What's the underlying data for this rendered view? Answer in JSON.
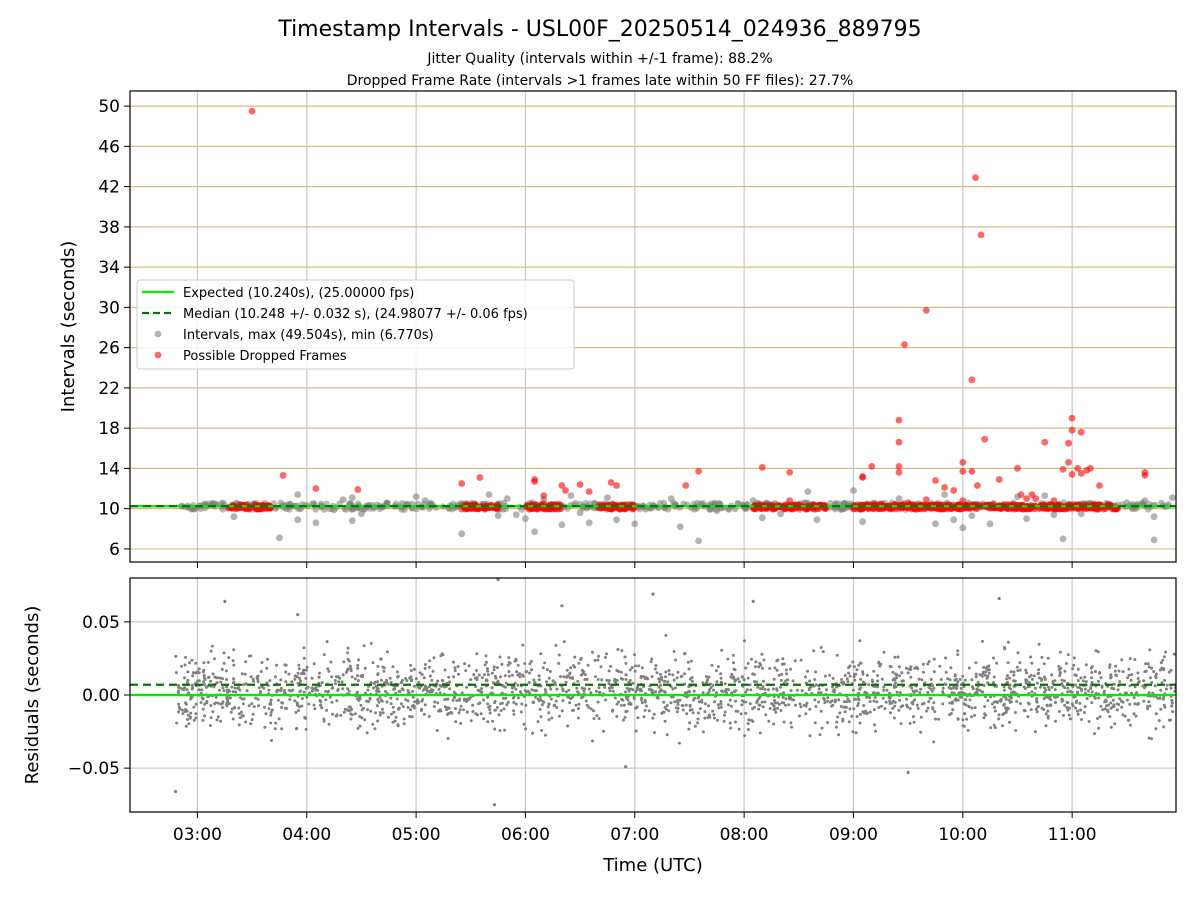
{
  "chart_data": [
    {
      "type": "scatter",
      "title": "Timestamp Intervals - USL00F_20250514_024936_889795",
      "subtitle_lines": [
        "Jitter Quality (intervals within +/-1 frame): 88.2%",
        "Dropped Frame Rate (intervals >1 frames late within 50 FF files): 27.7%"
      ],
      "xlabel": "",
      "ylabel": "Intervals (seconds)",
      "xlim": [
        "02:23",
        "11:57"
      ],
      "ylim": [
        4.7,
        51.5
      ],
      "yticks": [
        6,
        10,
        14,
        18,
        22,
        26,
        30,
        34,
        38,
        42,
        46,
        50
      ],
      "grid": "horizontal lines at every y tick, vertical lines at every hour",
      "legend": "center-left",
      "legend_labels": {
        "expected": "Expected (10.240s), (25.00000 fps)",
        "median": "Median (10.248 +/- 0.032 s), (24.98077 +/- 0.06 fps)",
        "intervals": "Intervals, max (49.504s), min (6.770s)",
        "dropped": "Possible Dropped Frames"
      },
      "expected_value": 10.24,
      "median_value": 10.248,
      "series": [
        {
          "name": "Intervals, max (49.504s), min (6.770s)",
          "color": "#808080",
          "dense_band": {
            "x_start": "02:50",
            "x_end": "11:55",
            "y_min": 9.9,
            "y_max": 10.6
          },
          "points": [
            [
              "03:20",
              9.2
            ],
            [
              "03:45",
              7.1
            ],
            [
              "03:55",
              11.4
            ],
            [
              "03:55",
              8.9
            ],
            [
              "04:05",
              8.6
            ],
            [
              "04:15",
              9.9
            ],
            [
              "04:20",
              10.9
            ],
            [
              "04:25",
              11.1
            ],
            [
              "04:25",
              8.8
            ],
            [
              "04:30",
              9.5
            ],
            [
              "05:00",
              11.2
            ],
            [
              "05:05",
              10.8
            ],
            [
              "05:25",
              7.5
            ],
            [
              "05:40",
              11.4
            ],
            [
              "05:45",
              9.3
            ],
            [
              "05:50",
              11.0
            ],
            [
              "05:55",
              9.4
            ],
            [
              "06:00",
              9.0
            ],
            [
              "06:05",
              7.7
            ],
            [
              "06:10",
              10.9
            ],
            [
              "06:20",
              8.4
            ],
            [
              "06:25",
              11.3
            ],
            [
              "06:30",
              9.6
            ],
            [
              "06:35",
              8.6
            ],
            [
              "06:45",
              11.1
            ],
            [
              "06:50",
              8.9
            ],
            [
              "07:00",
              8.5
            ],
            [
              "07:20",
              11.0
            ],
            [
              "07:25",
              8.2
            ],
            [
              "07:35",
              6.8
            ],
            [
              "07:45",
              9.8
            ],
            [
              "08:05",
              10.8
            ],
            [
              "08:10",
              9.1
            ],
            [
              "08:20",
              9.5
            ],
            [
              "08:35",
              11.7
            ],
            [
              "08:40",
              8.9
            ],
            [
              "09:00",
              11.8
            ],
            [
              "09:05",
              8.7
            ],
            [
              "09:15",
              10.5
            ],
            [
              "09:25",
              11.0
            ],
            [
              "09:45",
              8.5
            ],
            [
              "09:50",
              11.4
            ],
            [
              "09:55",
              8.9
            ],
            [
              "10:00",
              8.1
            ],
            [
              "10:05",
              9.3
            ],
            [
              "10:15",
              8.5
            ],
            [
              "10:30",
              11.2
            ],
            [
              "10:35",
              9.0
            ],
            [
              "10:45",
              11.3
            ],
            [
              "10:50",
              9.4
            ],
            [
              "10:55",
              7.0
            ],
            [
              "11:05",
              9.5
            ],
            [
              "11:30",
              10.6
            ],
            [
              "11:40",
              10.8
            ],
            [
              "11:45",
              9.2
            ],
            [
              "11:45",
              6.9
            ],
            [
              "11:50",
              10.3
            ],
            [
              "11:55",
              11.1
            ]
          ]
        },
        {
          "name": "Possible Dropped Frames",
          "color": "#ff0000",
          "bands": [
            [
              "03:17",
              "03:40"
            ],
            [
              "05:25",
              "05:45"
            ],
            [
              "06:00",
              "06:20"
            ],
            [
              "06:40",
              "07:00"
            ],
            [
              "08:05",
              "08:45"
            ],
            [
              "09:00",
              "10:00"
            ],
            [
              "10:00",
              "10:55"
            ],
            [
              "10:55",
              "11:25"
            ]
          ],
          "points": [
            [
              "03:30",
              49.5
            ],
            [
              "03:47",
              13.3
            ],
            [
              "04:05",
              12.0
            ],
            [
              "04:28",
              11.9
            ],
            [
              "05:25",
              12.5
            ],
            [
              "05:35",
              13.1
            ],
            [
              "06:05",
              12.9
            ],
            [
              "06:05",
              12.7
            ],
            [
              "06:10",
              11.3
            ],
            [
              "06:10",
              10.5
            ],
            [
              "06:20",
              12.3
            ],
            [
              "06:22",
              11.8
            ],
            [
              "06:30",
              12.4
            ],
            [
              "06:35",
              11.7
            ],
            [
              "06:47",
              12.6
            ],
            [
              "06:50",
              12.3
            ],
            [
              "07:28",
              12.3
            ],
            [
              "07:35",
              13.7
            ],
            [
              "08:10",
              14.1
            ],
            [
              "08:25",
              13.6
            ],
            [
              "08:25",
              10.8
            ],
            [
              "09:05",
              13.2
            ],
            [
              "09:05",
              13.1
            ],
            [
              "09:10",
              14.2
            ],
            [
              "09:20",
              10.3
            ],
            [
              "09:25",
              18.8
            ],
            [
              "09:25",
              16.6
            ],
            [
              "09:25",
              14.2
            ],
            [
              "09:25",
              13.6
            ],
            [
              "09:28",
              26.3
            ],
            [
              "09:30",
              10.6
            ],
            [
              "09:40",
              29.7
            ],
            [
              "09:40",
              10.9
            ],
            [
              "09:45",
              12.8
            ],
            [
              "09:50",
              12.1
            ],
            [
              "09:55",
              11.8
            ],
            [
              "10:00",
              14.6
            ],
            [
              "10:00",
              13.7
            ],
            [
              "10:00",
              10.8
            ],
            [
              "10:05",
              22.8
            ],
            [
              "10:05",
              13.7
            ],
            [
              "10:07",
              42.9
            ],
            [
              "10:08",
              12.3
            ],
            [
              "10:10",
              37.2
            ],
            [
              "10:12",
              16.9
            ],
            [
              "10:20",
              12.9
            ],
            [
              "10:30",
              14.0
            ],
            [
              "10:32",
              11.4
            ],
            [
              "10:35",
              11.0
            ],
            [
              "10:38",
              11.4
            ],
            [
              "10:40",
              11.0
            ],
            [
              "10:45",
              16.6
            ],
            [
              "10:50",
              10.8
            ],
            [
              "10:55",
              13.9
            ],
            [
              "10:58",
              14.6
            ],
            [
              "10:58",
              16.5
            ],
            [
              "11:00",
              17.8
            ],
            [
              "11:00",
              19.0
            ],
            [
              "11:00",
              13.4
            ],
            [
              "11:03",
              14.0
            ],
            [
              "11:05",
              17.6
            ],
            [
              "11:05",
              13.5
            ],
            [
              "11:08",
              13.8
            ],
            [
              "11:10",
              14.0
            ],
            [
              "11:15",
              12.3
            ],
            [
              "11:40",
              13.6
            ],
            [
              "11:40",
              13.3
            ]
          ]
        }
      ]
    },
    {
      "type": "scatter",
      "xlabel": "Time (UTC)",
      "ylabel": "Residuals (seconds)",
      "xlim": [
        "02:23",
        "11:57"
      ],
      "ylim": [
        -0.08,
        0.08
      ],
      "yticks": [
        -0.05,
        0.0,
        0.05
      ],
      "ytick_labels": [
        "−0.05",
        "0.00",
        "0.05"
      ],
      "xticks": [
        "03:00",
        "04:00",
        "05:00",
        "06:00",
        "07:00",
        "08:00",
        "09:00",
        "10:00",
        "11:00"
      ],
      "grid": "on",
      "zero_line": 0.0,
      "median_line": 0.007,
      "series": [
        {
          "name": "Residuals",
          "color": "#808080",
          "x_start": "02:48",
          "x_end": "11:57",
          "spread_sd": 0.021,
          "center": 0.003,
          "notable_points": [
            [
              "02:48",
              -0.066
            ],
            [
              "03:15",
              0.064
            ],
            [
              "03:55",
              0.055
            ],
            [
              "05:43",
              -0.075
            ],
            [
              "05:45",
              0.079
            ],
            [
              "06:20",
              0.061
            ],
            [
              "06:55",
              -0.049
            ],
            [
              "07:10",
              0.069
            ],
            [
              "08:05",
              0.064
            ],
            [
              "09:30",
              -0.053
            ],
            [
              "10:20",
              0.066
            ]
          ]
        }
      ]
    }
  ],
  "colors": {
    "expected_line": "#00ee00",
    "median_line": "#007700",
    "grid_h_top": "#d4bf82",
    "grid": "#c8c8c8",
    "intervals": "#808080",
    "dropped": "#ff0000"
  }
}
